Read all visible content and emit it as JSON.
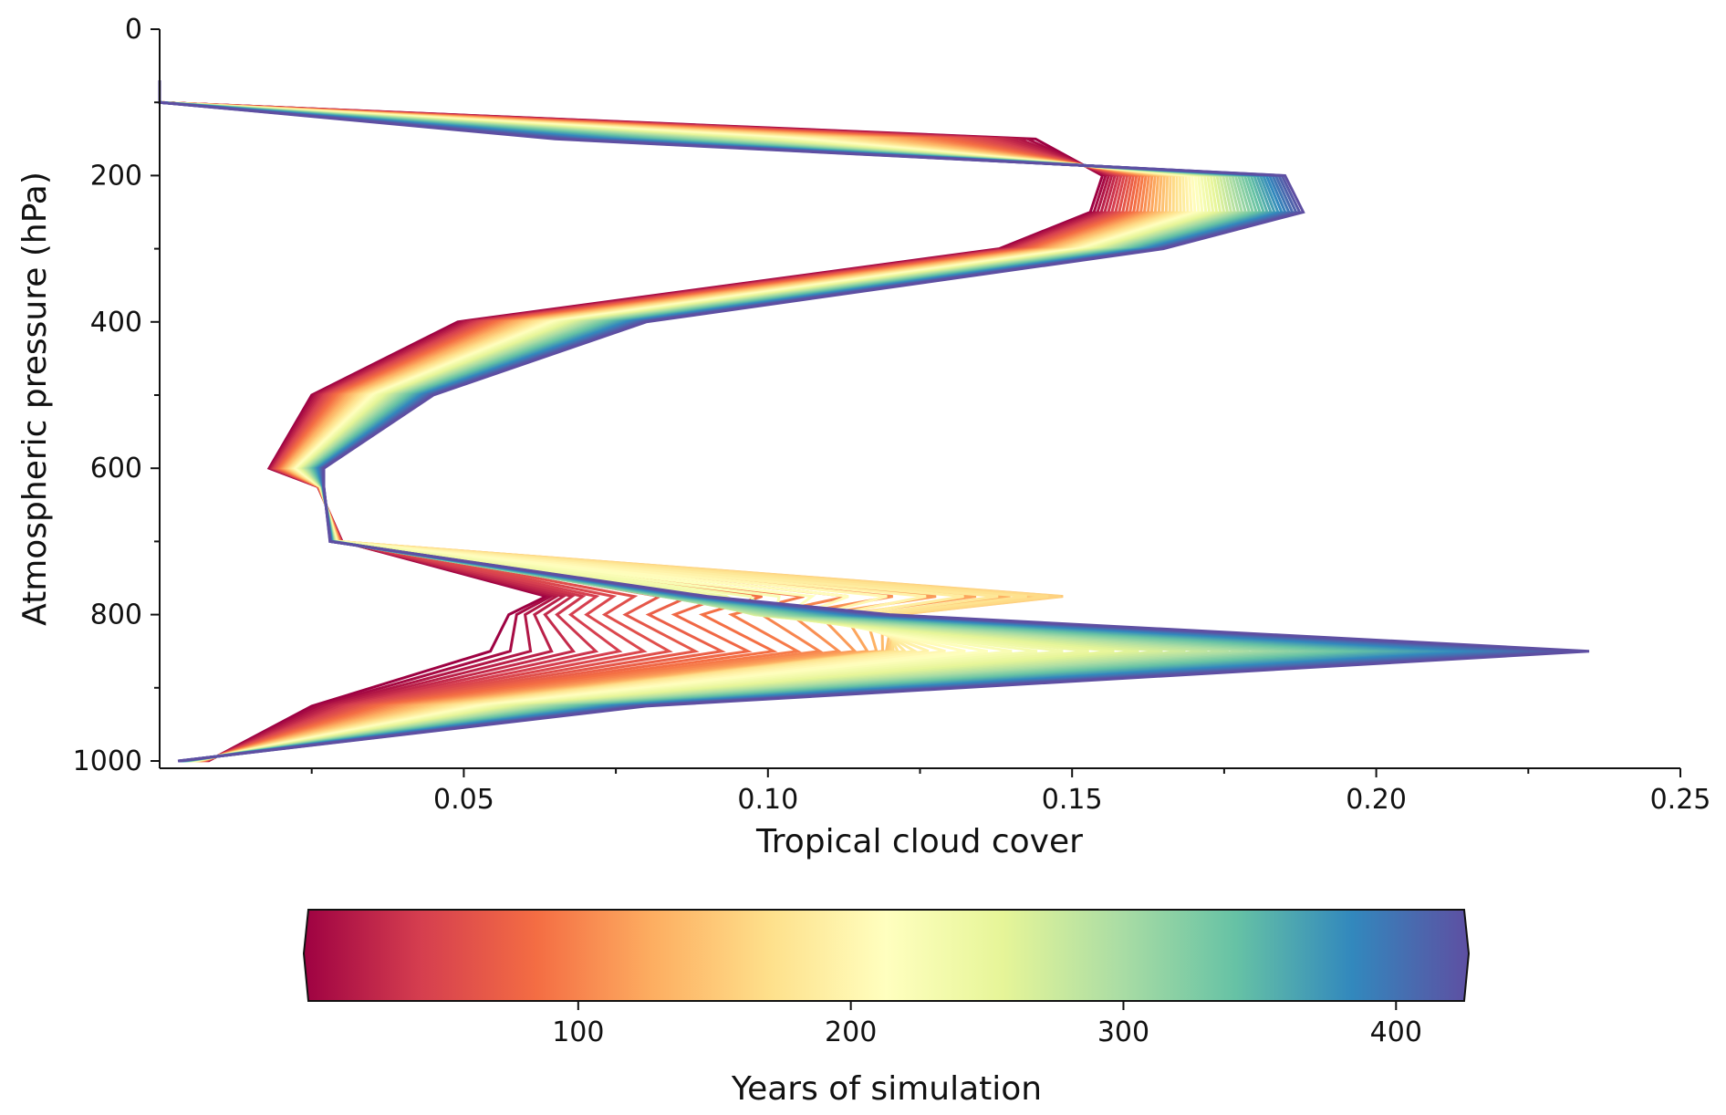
{
  "chart_data": {
    "type": "line",
    "xlabel": "Tropical cloud cover",
    "ylabel": "Atmospheric pressure (hPa)",
    "xlim": [
      0,
      0.25
    ],
    "ylim": [
      1000,
      0
    ],
    "y_inverted": true,
    "grid": false,
    "xticks": [
      "0.05",
      "0.10",
      "0.15",
      "0.20",
      "0.25"
    ],
    "yticks": [
      "0",
      "200",
      "400",
      "600",
      "800",
      "1000"
    ],
    "colorbar": {
      "label": "Years of simulation",
      "cmap": "Spectral",
      "range": [
        1,
        425
      ],
      "ticks": [
        "100",
        "200",
        "300",
        "400"
      ],
      "colors": [
        "#9e0142",
        "#d53e4f",
        "#f46d43",
        "#fdae61",
        "#fee08b",
        "#ffffbf",
        "#e6f598",
        "#abdda4",
        "#66c2a5",
        "#3288bd",
        "#5e4fa2"
      ]
    },
    "pressure_levels": [
      70,
      100,
      150,
      200,
      250,
      300,
      400,
      500,
      600,
      625,
      700,
      775,
      800,
      850,
      925,
      1000
    ],
    "series_start": {
      "year": 1,
      "values": [
        0.0,
        0.0,
        0.144,
        0.155,
        0.153,
        0.138,
        0.049,
        0.025,
        0.018,
        0.026,
        0.03,
        0.063,
        0.057,
        0.054,
        0.025,
        0.008
      ]
    },
    "series_end": {
      "year": 425,
      "values": [
        0.0,
        0.0,
        0.065,
        0.185,
        0.188,
        0.165,
        0.08,
        0.045,
        0.027,
        0.027,
        0.028,
        0.09,
        0.12,
        0.235,
        0.08,
        0.003
      ]
    },
    "mid_series": {
      "year": 160,
      "levels": [
        775,
        800,
        850
      ],
      "values": [
        0.157,
        0.126,
        0.12
      ]
    }
  }
}
